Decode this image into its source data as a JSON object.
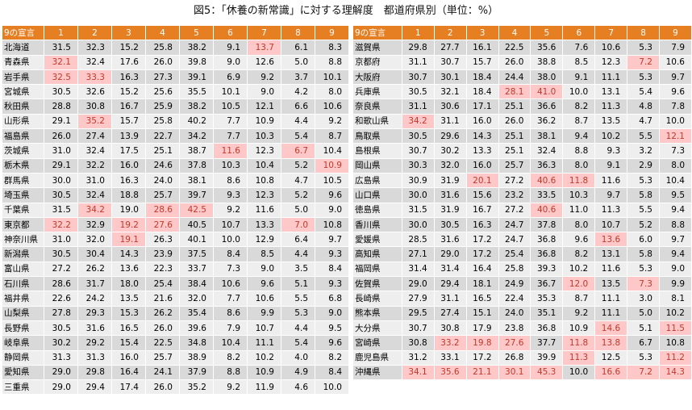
{
  "title": "図5：「休養の新常識」に対する理解度　都道府県別（単位：%）",
  "colors": {
    "header_bg": "#e67e22",
    "highlight_bg": "#ffc8c8",
    "highlight_text": "#c0392b"
  },
  "columns": [
    "9の宣言",
    "1",
    "2",
    "3",
    "4",
    "5",
    "6",
    "7",
    "8",
    "9"
  ],
  "left_rows": [
    {
      "pref": "北海道",
      "values": [
        "31.5",
        "32.3",
        "15.2",
        "25.8",
        "38.2",
        "9.1",
        "13.7",
        "6.1",
        "8.3"
      ],
      "hl": [
        6
      ]
    },
    {
      "pref": "青森県",
      "values": [
        "32.1",
        "32.4",
        "17.6",
        "26.0",
        "39.8",
        "9.0",
        "12.6",
        "5.0",
        "8.8"
      ],
      "hl": [
        0
      ]
    },
    {
      "pref": "岩手県",
      "values": [
        "32.5",
        "33.3",
        "16.3",
        "27.3",
        "39.1",
        "6.9",
        "9.2",
        "3.7",
        "10.1"
      ],
      "hl": [
        0,
        1
      ]
    },
    {
      "pref": "宮城県",
      "values": [
        "30.5",
        "32.6",
        "15.2",
        "25.6",
        "35.5",
        "10.1",
        "9.0",
        "4.2",
        "8.0"
      ],
      "hl": []
    },
    {
      "pref": "秋田県",
      "values": [
        "28.8",
        "30.8",
        "16.7",
        "25.9",
        "38.2",
        "10.5",
        "12.1",
        "6.6",
        "10.6"
      ],
      "hl": []
    },
    {
      "pref": "山形県",
      "values": [
        "29.1",
        "35.2",
        "15.7",
        "25.8",
        "40.2",
        "7.7",
        "10.9",
        "4.4",
        "9.2"
      ],
      "hl": [
        1
      ]
    },
    {
      "pref": "福島県",
      "values": [
        "26.0",
        "27.4",
        "13.9",
        "22.7",
        "34.2",
        "7.7",
        "10.3",
        "5.4",
        "8.7"
      ],
      "hl": []
    },
    {
      "pref": "茨城県",
      "values": [
        "31.0",
        "32.4",
        "17.5",
        "25.1",
        "38.7",
        "11.6",
        "12.3",
        "6.7",
        "10.4"
      ],
      "hl": [
        5,
        7
      ]
    },
    {
      "pref": "栃木県",
      "values": [
        "29.1",
        "32.2",
        "16.0",
        "24.6",
        "37.8",
        "10.3",
        "10.4",
        "5.2",
        "10.9"
      ],
      "hl": [
        8
      ]
    },
    {
      "pref": "群馬県",
      "values": [
        "30.0",
        "31.0",
        "16.3",
        "24.0",
        "38.1",
        "8.6",
        "10.8",
        "4.7",
        "10.5"
      ],
      "hl": []
    },
    {
      "pref": "埼玉県",
      "values": [
        "30.5",
        "32.4",
        "18.8",
        "25.7",
        "39.7",
        "9.3",
        "12.3",
        "5.2",
        "9.6"
      ],
      "hl": []
    },
    {
      "pref": "千葉県",
      "values": [
        "31.5",
        "34.2",
        "19.0",
        "28.6",
        "42.5",
        "9.2",
        "11.6",
        "5.0",
        "9.0"
      ],
      "hl": [
        1,
        3,
        4
      ]
    },
    {
      "pref": "東京都",
      "values": [
        "32.2",
        "32.9",
        "19.2",
        "27.6",
        "40.5",
        "10.7",
        "13.3",
        "7.0",
        "10.8"
      ],
      "hl": [
        0,
        2,
        3,
        7
      ]
    },
    {
      "pref": "神奈川県",
      "values": [
        "31.0",
        "32.0",
        "19.1",
        "26.3",
        "40.1",
        "10.0",
        "12.9",
        "6.4",
        "9.7"
      ],
      "hl": [
        2
      ]
    },
    {
      "pref": "新潟県",
      "values": [
        "30.5",
        "30.4",
        "14.3",
        "23.9",
        "37.5",
        "8.4",
        "8.5",
        "4.4",
        "9.3"
      ],
      "hl": []
    },
    {
      "pref": "富山県",
      "values": [
        "27.2",
        "26.2",
        "13.6",
        "22.3",
        "33.7",
        "7.3",
        "9.0",
        "3.5",
        "8.4"
      ],
      "hl": []
    },
    {
      "pref": "石川県",
      "values": [
        "28.6",
        "31.7",
        "18.0",
        "25.4",
        "38.4",
        "10.6",
        "9.6",
        "5.1",
        "9.3"
      ],
      "hl": []
    },
    {
      "pref": "福井県",
      "values": [
        "22.6",
        "24.2",
        "13.5",
        "21.6",
        "32.0",
        "7.7",
        "10.6",
        "5.5",
        "6.8"
      ],
      "hl": []
    },
    {
      "pref": "山梨県",
      "values": [
        "27.8",
        "29.3",
        "15.3",
        "26.2",
        "35.4",
        "8.6",
        "9.9",
        "5.3",
        "9.0"
      ],
      "hl": []
    },
    {
      "pref": "長野県",
      "values": [
        "30.5",
        "31.6",
        "16.5",
        "26.0",
        "39.6",
        "7.9",
        "10.7",
        "4.4",
        "9.5"
      ],
      "hl": []
    },
    {
      "pref": "岐阜県",
      "values": [
        "30.2",
        "29.2",
        "15.4",
        "22.5",
        "34.8",
        "10.4",
        "11.1",
        "5.4",
        "9.6"
      ],
      "hl": []
    },
    {
      "pref": "静岡県",
      "values": [
        "31.3",
        "31.3",
        "16.0",
        "25.7",
        "38.9",
        "8.2",
        "10.2",
        "4.0",
        "8.2"
      ],
      "hl": []
    },
    {
      "pref": "愛知県",
      "values": [
        "29.0",
        "29.8",
        "16.4",
        "24.1",
        "37.9",
        "8.8",
        "10.9",
        "4.9",
        "8.4"
      ],
      "hl": []
    },
    {
      "pref": "三重県",
      "values": [
        "29.0",
        "29.4",
        "17.4",
        "26.0",
        "35.2",
        "9.2",
        "11.9",
        "4.6",
        "10.0"
      ],
      "hl": []
    }
  ],
  "right_rows": [
    {
      "pref": "滋賀県",
      "values": [
        "29.8",
        "27.7",
        "16.1",
        "22.5",
        "35.6",
        "7.6",
        "10.6",
        "5.3",
        "7.9"
      ],
      "hl": []
    },
    {
      "pref": "京都府",
      "values": [
        "31.1",
        "30.7",
        "15.7",
        "26.0",
        "38.8",
        "8.5",
        "12.3",
        "7.2",
        "10.6"
      ],
      "hl": [
        7
      ]
    },
    {
      "pref": "大阪府",
      "values": [
        "30.7",
        "30.1",
        "18.4",
        "24.4",
        "38.0",
        "9.1",
        "11.1",
        "5.3",
        "9.7"
      ],
      "hl": []
    },
    {
      "pref": "兵庫県",
      "values": [
        "30.5",
        "32.1",
        "18.4",
        "28.1",
        "41.0",
        "10.0",
        "13.1",
        "5.4",
        "9.6"
      ],
      "hl": [
        3,
        4
      ]
    },
    {
      "pref": "奈良県",
      "values": [
        "31.1",
        "30.6",
        "17.1",
        "25.1",
        "36.6",
        "8.2",
        "11.3",
        "4.8",
        "7.8"
      ],
      "hl": []
    },
    {
      "pref": "和歌山県",
      "values": [
        "34.2",
        "31.1",
        "16.0",
        "26.0",
        "36.2",
        "8.7",
        "13.5",
        "4.7",
        "10.0"
      ],
      "hl": [
        0
      ]
    },
    {
      "pref": "鳥取県",
      "values": [
        "30.5",
        "29.6",
        "14.3",
        "25.1",
        "38.1",
        "9.4",
        "10.2",
        "5.5",
        "12.1"
      ],
      "hl": [
        8
      ]
    },
    {
      "pref": "島根県",
      "values": [
        "30.7",
        "30.2",
        "13.3",
        "25.1",
        "32.4",
        "8.8",
        "9.3",
        "3.2",
        "7.3"
      ],
      "hl": []
    },
    {
      "pref": "岡山県",
      "values": [
        "30.3",
        "32.0",
        "16.0",
        "25.7",
        "36.3",
        "8.0",
        "9.1",
        "2.9",
        "8.0"
      ],
      "hl": []
    },
    {
      "pref": "広島県",
      "values": [
        "30.9",
        "31.9",
        "20.1",
        "27.2",
        "40.6",
        "11.8",
        "11.6",
        "5.3",
        "10.4"
      ],
      "hl": [
        2,
        4,
        5
      ]
    },
    {
      "pref": "山口県",
      "values": [
        "30.0",
        "31.6",
        "15.6",
        "23.2",
        "33.5",
        "10.3",
        "9.7",
        "5.8",
        "9.5"
      ],
      "hl": []
    },
    {
      "pref": "徳島県",
      "values": [
        "31.5",
        "31.9",
        "16.7",
        "27.2",
        "40.6",
        "11.0",
        "11.3",
        "5.5",
        "9.4"
      ],
      "hl": [
        4
      ]
    },
    {
      "pref": "香川県",
      "values": [
        "30.0",
        "30.5",
        "16.3",
        "24.7",
        "37.8",
        "8.0",
        "10.7",
        "5.2",
        "8.8"
      ],
      "hl": []
    },
    {
      "pref": "愛媛県",
      "values": [
        "28.5",
        "31.6",
        "17.2",
        "24.7",
        "36.8",
        "9.6",
        "13.6",
        "6.0",
        "9.7"
      ],
      "hl": [
        6
      ]
    },
    {
      "pref": "高知県",
      "values": [
        "27.1",
        "29.0",
        "17.2",
        "25.4",
        "36.8",
        "8.2",
        "13.1",
        "5.8",
        "9.4"
      ],
      "hl": []
    },
    {
      "pref": "福岡県",
      "values": [
        "31.4",
        "31.4",
        "16.4",
        "25.8",
        "39.3",
        "10.2",
        "11.6",
        "5.3",
        "9.0"
      ],
      "hl": []
    },
    {
      "pref": "佐賀県",
      "values": [
        "29.0",
        "29.4",
        "18.1",
        "24.9",
        "36.7",
        "12.0",
        "13.5",
        "7.3",
        "9.9"
      ],
      "hl": [
        5,
        7
      ]
    },
    {
      "pref": "長崎県",
      "values": [
        "27.9",
        "31.1",
        "16.5",
        "22.4",
        "35.3",
        "8.7",
        "11.1",
        "3.0",
        "8.1"
      ],
      "hl": []
    },
    {
      "pref": "熊本県",
      "values": [
        "29.5",
        "27.4",
        "15.1",
        "24.0",
        "35.1",
        "9.2",
        "11.1",
        "5.0",
        "10.2"
      ],
      "hl": []
    },
    {
      "pref": "大分県",
      "values": [
        "30.7",
        "30.8",
        "17.9",
        "23.8",
        "36.8",
        "10.9",
        "14.6",
        "5.1",
        "11.5"
      ],
      "hl": [
        6,
        8
      ]
    },
    {
      "pref": "宮崎県",
      "values": [
        "30.8",
        "33.2",
        "19.8",
        "27.6",
        "37.7",
        "11.8",
        "13.8",
        "6.7",
        "10.8"
      ],
      "hl": [
        1,
        2,
        3,
        5,
        6
      ]
    },
    {
      "pref": "鹿児島県",
      "values": [
        "31.2",
        "33.1",
        "17.2",
        "26.8",
        "39.9",
        "11.3",
        "12.5",
        "5.3",
        "11.2"
      ],
      "hl": [
        5,
        8
      ]
    },
    {
      "pref": "沖縄県",
      "values": [
        "34.1",
        "35.6",
        "21.1",
        "30.1",
        "45.3",
        "10.0",
        "16.6",
        "7.2",
        "14.3"
      ],
      "hl": [
        0,
        1,
        2,
        3,
        4,
        6,
        7,
        8
      ]
    }
  ]
}
